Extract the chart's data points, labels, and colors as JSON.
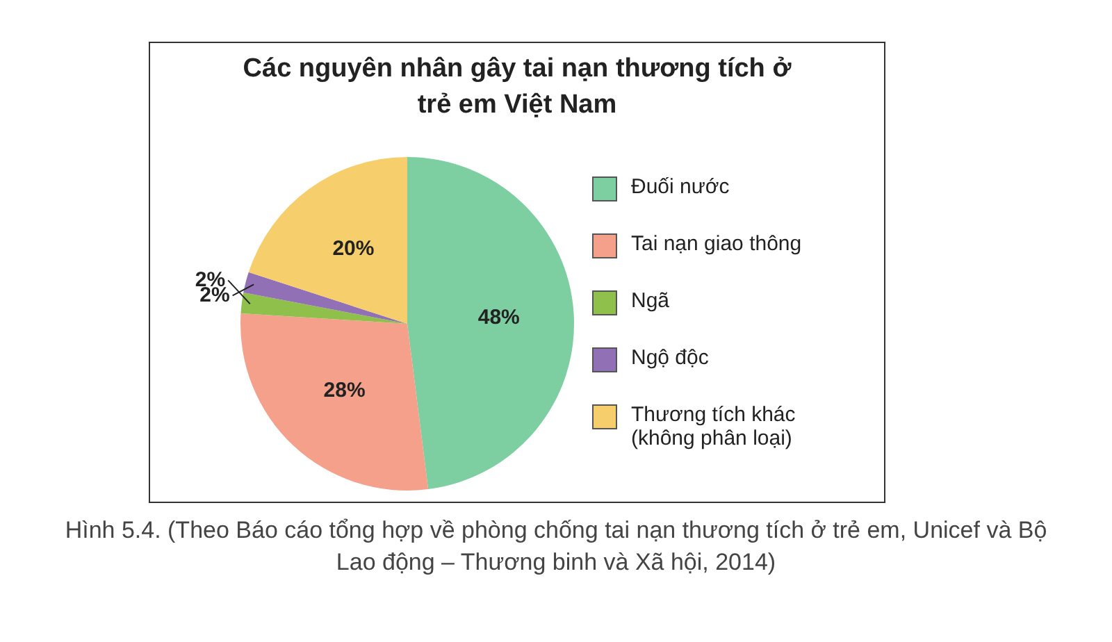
{
  "chart_data": {
    "type": "pie",
    "title": "Các nguyên nhân gây tai nạn thương tích ở trẻ em Việt Nam",
    "categories": [
      "Đuối nước",
      "Tai nạn giao thông",
      "Ngã",
      "Ngộ độc",
      "Thương tích khác (không phân loại)"
    ],
    "values": [
      48,
      28,
      2,
      2,
      20
    ],
    "colors": [
      "#7dcea0",
      "#f4a08a",
      "#8fc04c",
      "#9270b6",
      "#f6cf6c"
    ],
    "value_labels": [
      "48%",
      "28%",
      "2%",
      "2%",
      "20%"
    ],
    "legend": "right",
    "annotations": [
      "Hình 5.4. (Theo Báo cáo tổng hợp về phòng chống tai nạn thương tích ở trẻ em, Unicef và Bộ Lao động – Thương binh và Xã hội, 2014)"
    ]
  }
}
